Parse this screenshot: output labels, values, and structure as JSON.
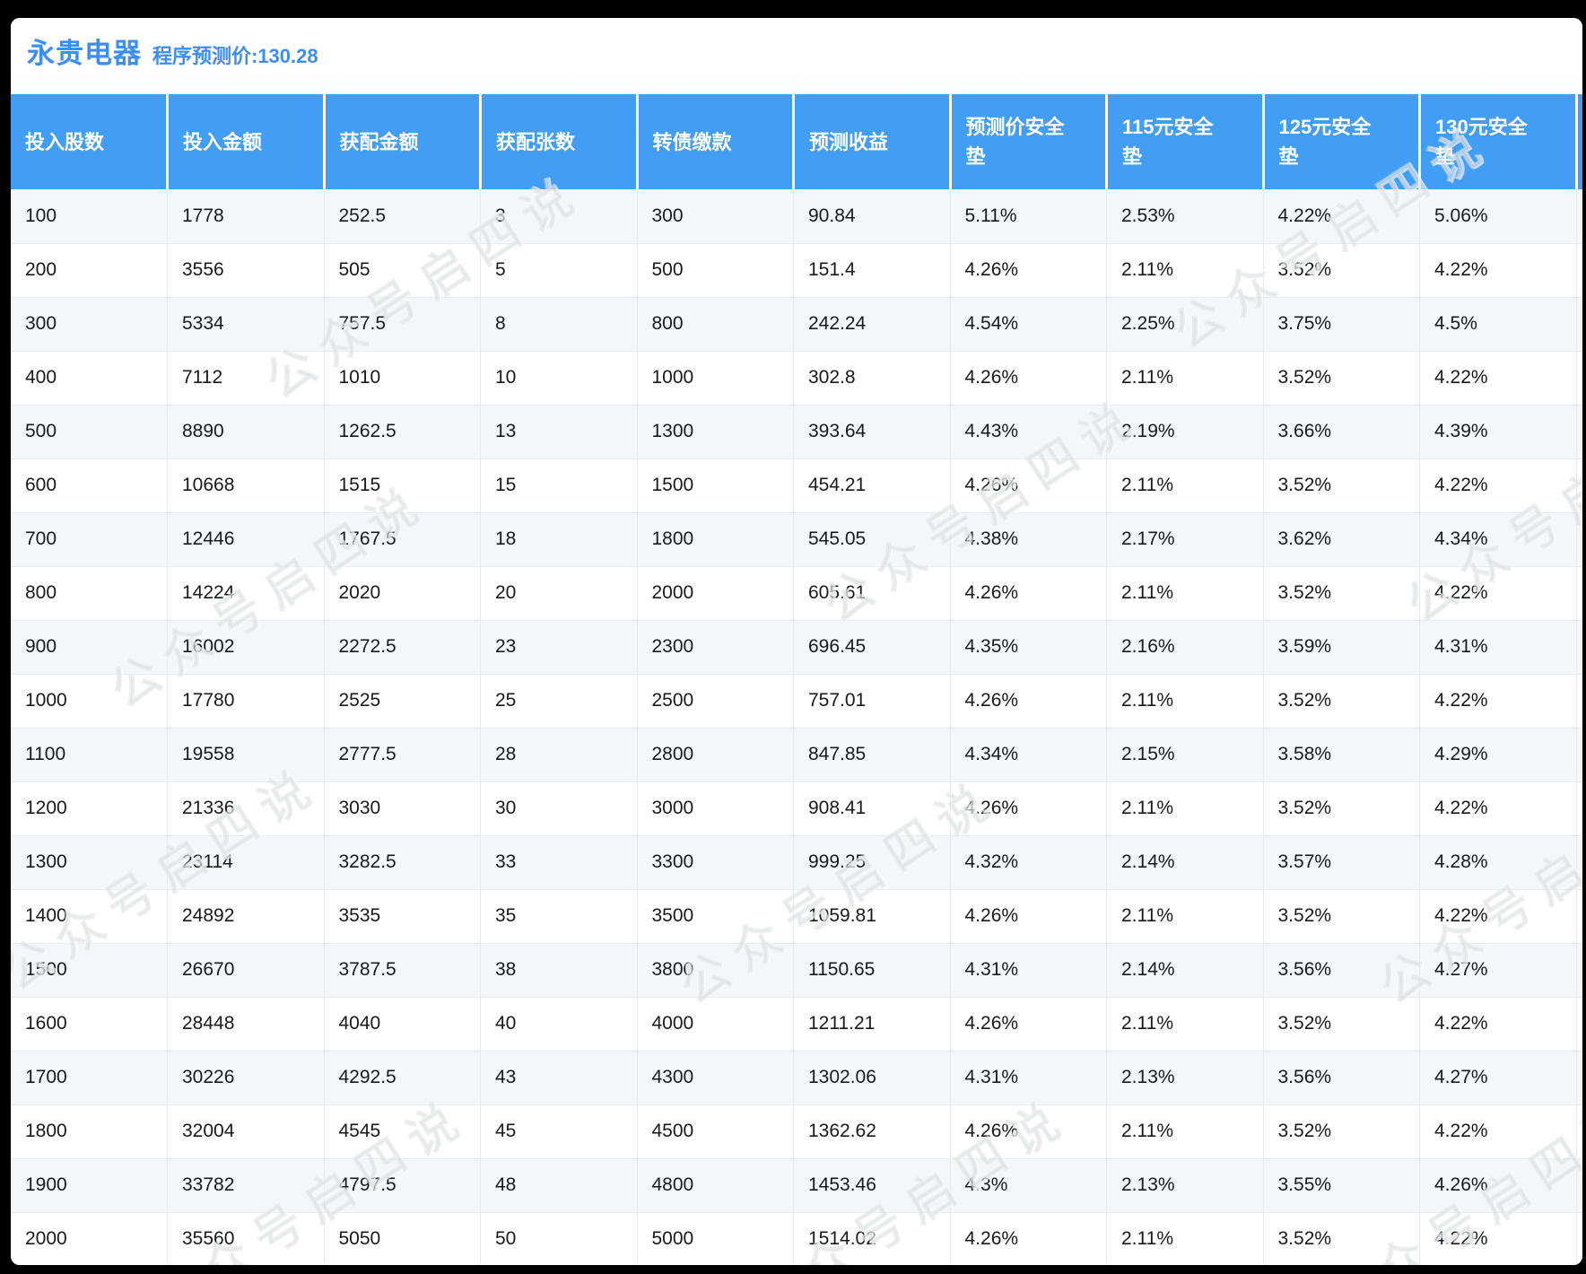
{
  "title": "永贵电器",
  "subtitle": "程序预测价:130.28",
  "watermark": "公众号启四说",
  "colors": {
    "accent_blue": "#3c8ef3",
    "header_bg": "#429df5",
    "row_stripe": "#f4f6f9",
    "grid_line": "#e8ebef",
    "text": "#17191c",
    "frame": "#000000"
  },
  "table": {
    "headers": [
      "投入股数",
      "投入金额",
      "获配金额",
      "获配张数",
      "转债缴款",
      "预测收益",
      "预测价安全垫",
      "115元安全垫",
      "125元安全垫",
      "130元安全垫"
    ],
    "rows": [
      [
        "100",
        "1778",
        "252.5",
        "3",
        "300",
        "90.84",
        "5.11%",
        "2.53%",
        "4.22%",
        "5.06%"
      ],
      [
        "200",
        "3556",
        "505",
        "5",
        "500",
        "151.4",
        "4.26%",
        "2.11%",
        "3.52%",
        "4.22%"
      ],
      [
        "300",
        "5334",
        "757.5",
        "8",
        "800",
        "242.24",
        "4.54%",
        "2.25%",
        "3.75%",
        "4.5%"
      ],
      [
        "400",
        "7112",
        "1010",
        "10",
        "1000",
        "302.8",
        "4.26%",
        "2.11%",
        "3.52%",
        "4.22%"
      ],
      [
        "500",
        "8890",
        "1262.5",
        "13",
        "1300",
        "393.64",
        "4.43%",
        "2.19%",
        "3.66%",
        "4.39%"
      ],
      [
        "600",
        "10668",
        "1515",
        "15",
        "1500",
        "454.21",
        "4.26%",
        "2.11%",
        "3.52%",
        "4.22%"
      ],
      [
        "700",
        "12446",
        "1767.5",
        "18",
        "1800",
        "545.05",
        "4.38%",
        "2.17%",
        "3.62%",
        "4.34%"
      ],
      [
        "800",
        "14224",
        "2020",
        "20",
        "2000",
        "605.61",
        "4.26%",
        "2.11%",
        "3.52%",
        "4.22%"
      ],
      [
        "900",
        "16002",
        "2272.5",
        "23",
        "2300",
        "696.45",
        "4.35%",
        "2.16%",
        "3.59%",
        "4.31%"
      ],
      [
        "1000",
        "17780",
        "2525",
        "25",
        "2500",
        "757.01",
        "4.26%",
        "2.11%",
        "3.52%",
        "4.22%"
      ],
      [
        "1100",
        "19558",
        "2777.5",
        "28",
        "2800",
        "847.85",
        "4.34%",
        "2.15%",
        "3.58%",
        "4.29%"
      ],
      [
        "1200",
        "21336",
        "3030",
        "30",
        "3000",
        "908.41",
        "4.26%",
        "2.11%",
        "3.52%",
        "4.22%"
      ],
      [
        "1300",
        "23114",
        "3282.5",
        "33",
        "3300",
        "999.25",
        "4.32%",
        "2.14%",
        "3.57%",
        "4.28%"
      ],
      [
        "1400",
        "24892",
        "3535",
        "35",
        "3500",
        "1059.81",
        "4.26%",
        "2.11%",
        "3.52%",
        "4.22%"
      ],
      [
        "1500",
        "26670",
        "3787.5",
        "38",
        "3800",
        "1150.65",
        "4.31%",
        "2.14%",
        "3.56%",
        "4.27%"
      ],
      [
        "1600",
        "28448",
        "4040",
        "40",
        "4000",
        "1211.21",
        "4.26%",
        "2.11%",
        "3.52%",
        "4.22%"
      ],
      [
        "1700",
        "30226",
        "4292.5",
        "43",
        "4300",
        "1302.06",
        "4.31%",
        "2.13%",
        "3.56%",
        "4.27%"
      ],
      [
        "1800",
        "32004",
        "4545",
        "45",
        "4500",
        "1362.62",
        "4.26%",
        "2.11%",
        "3.52%",
        "4.22%"
      ],
      [
        "1900",
        "33782",
        "4797.5",
        "48",
        "4800",
        "1453.46",
        "4.3%",
        "2.13%",
        "3.55%",
        "4.26%"
      ],
      [
        "2000",
        "35560",
        "5050",
        "50",
        "5000",
        "1514.02",
        "4.26%",
        "2.11%",
        "3.52%",
        "4.22%"
      ]
    ]
  }
}
